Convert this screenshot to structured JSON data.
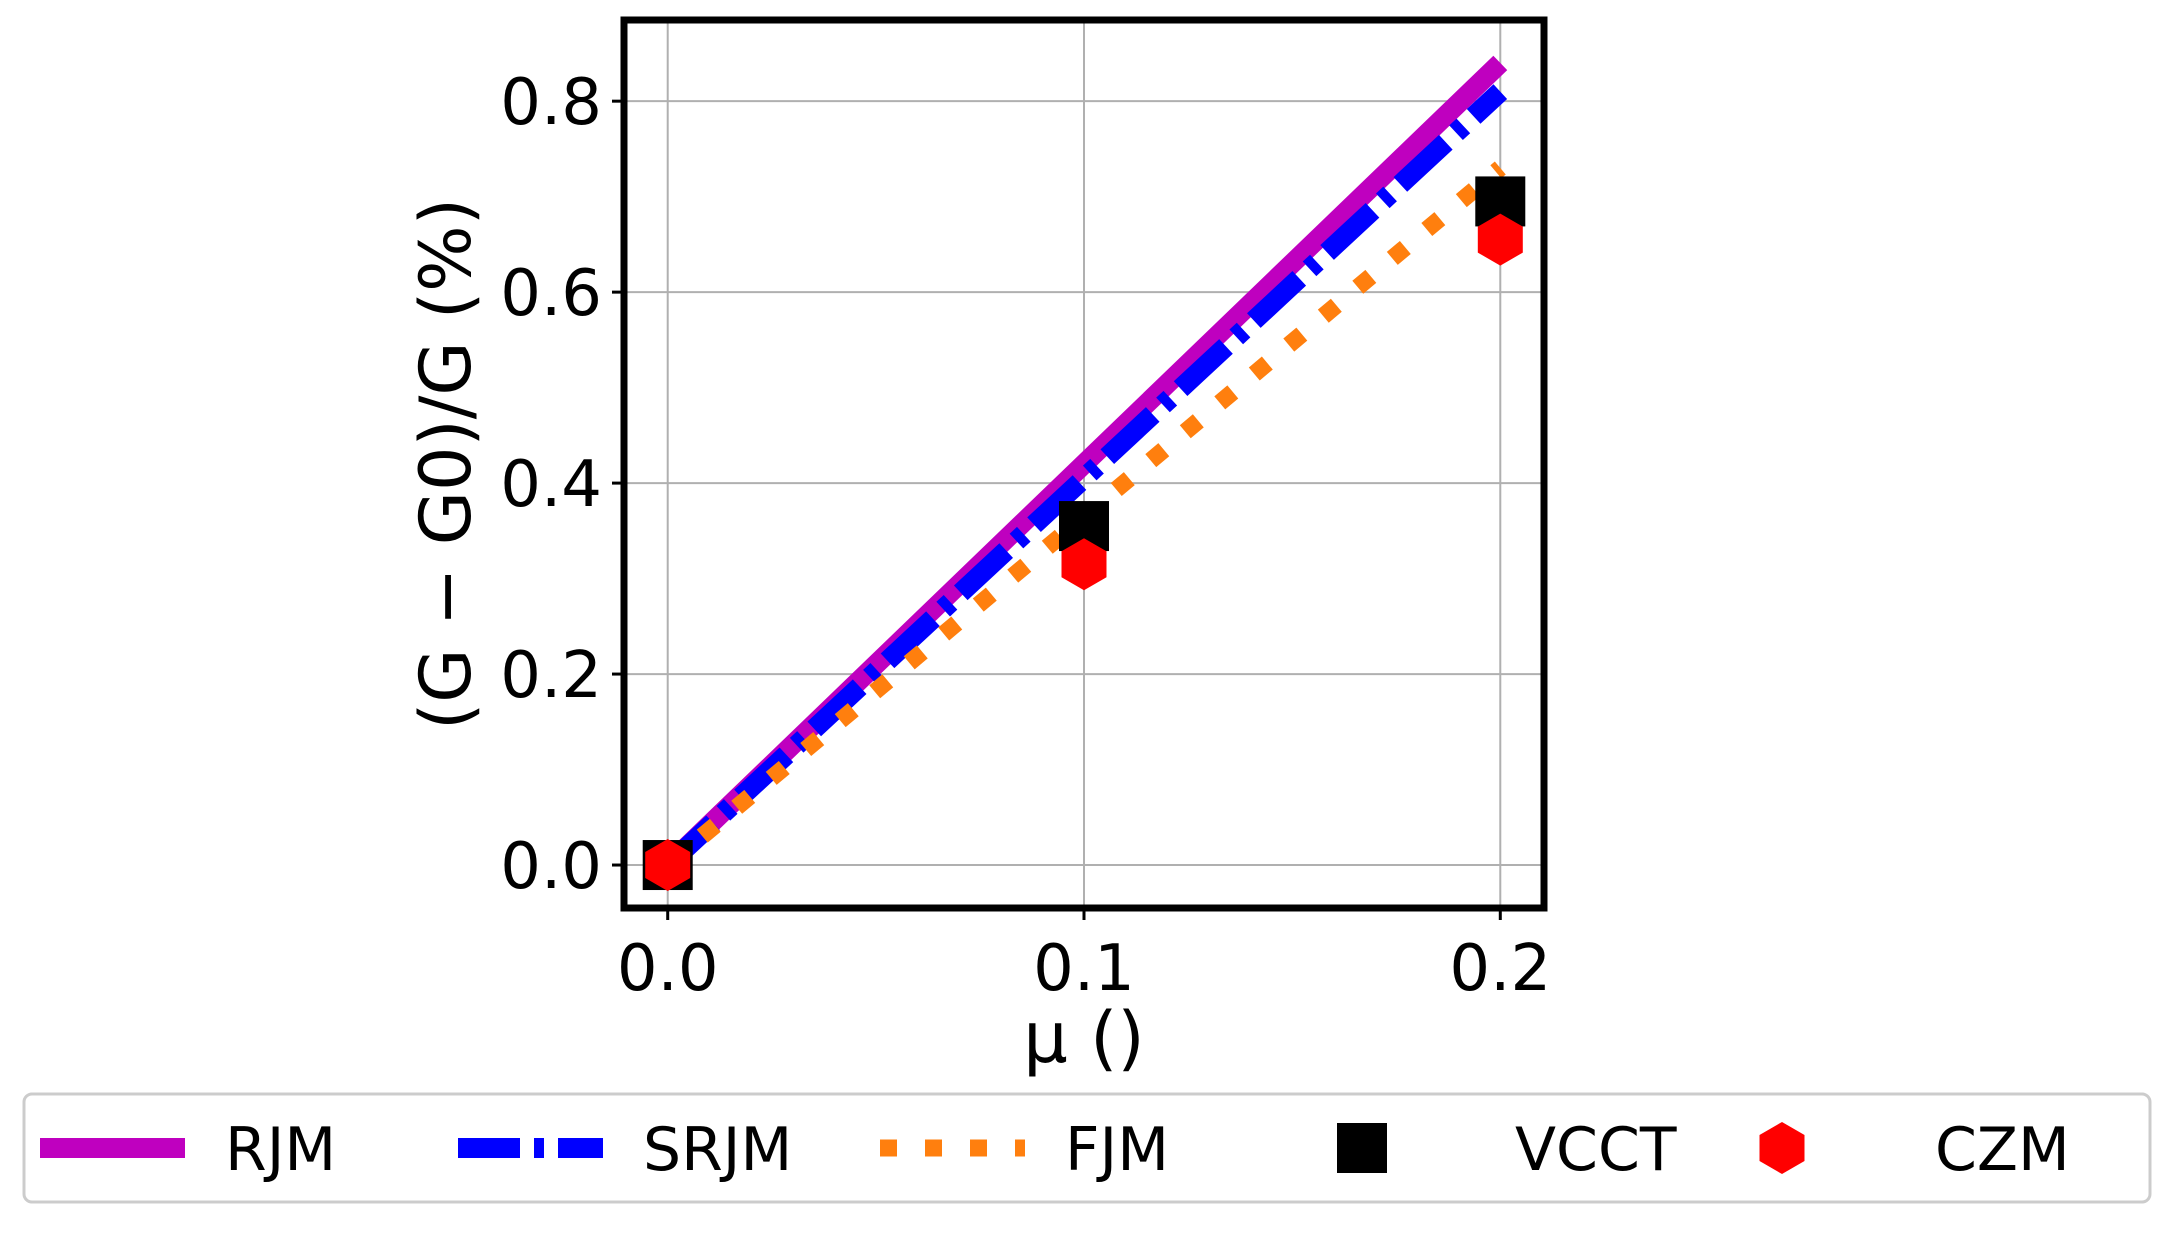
{
  "chart_data": {
    "type": "line",
    "xlabel": "μ ()",
    "ylabel": "(G − G0)/G (%)",
    "xlim": [
      -0.0105,
      0.2105
    ],
    "ylim": [
      -0.045,
      0.885
    ],
    "xticks": [
      0.0,
      0.1,
      0.2
    ],
    "xtick_labels": [
      "0.0",
      "0.1",
      "0.2"
    ],
    "yticks": [
      0.0,
      0.2,
      0.4,
      0.6,
      0.8
    ],
    "ytick_labels": [
      "0.0",
      "0.2",
      "0.4",
      "0.6",
      "0.8"
    ],
    "grid": true,
    "legend_position": "bottom",
    "series": [
      {
        "name": "RJM",
        "kind": "line",
        "style": "solid",
        "color": "#bf00bf",
        "x": [
          0.0,
          0.2
        ],
        "y": [
          0.0,
          0.84
        ]
      },
      {
        "name": "SRJM",
        "kind": "line",
        "style": "dashdot",
        "color": "#0000ff",
        "x": [
          0.0,
          0.2
        ],
        "y": [
          0.0,
          0.81
        ]
      },
      {
        "name": "FJM",
        "kind": "line",
        "style": "dotted",
        "color": "#ff7f0e",
        "x": [
          0.0,
          0.2
        ],
        "y": [
          0.0,
          0.73
        ]
      },
      {
        "name": "VCCT",
        "kind": "marker",
        "marker": "square",
        "color": "#000000",
        "x": [
          0.0,
          0.1,
          0.2
        ],
        "y": [
          0.0,
          0.355,
          0.695
        ]
      },
      {
        "name": "CZM",
        "kind": "marker",
        "marker": "hexagon",
        "color": "#ff0000",
        "x": [
          0.0,
          0.1,
          0.2
        ],
        "y": [
          0.0,
          0.315,
          0.655
        ]
      }
    ]
  }
}
